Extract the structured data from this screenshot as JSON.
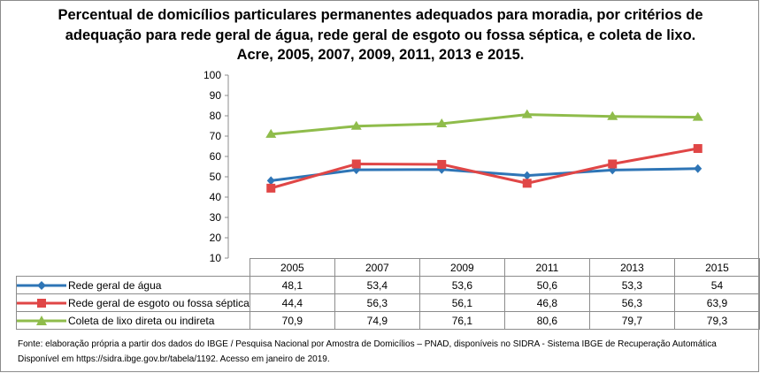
{
  "chart_data": {
    "type": "line",
    "title": "Percentual de domicílios particulares permanentes adequados para moradia, por critérios de adequação para rede geral de água, rede geral de esgoto ou fossa séptica, e coleta de lixo. Acre, 2005, 2007, 2009, 2011, 2013 e 2015.",
    "categories": [
      "2005",
      "2007",
      "2009",
      "2011",
      "2013",
      "2015"
    ],
    "ylim": [
      10,
      100
    ],
    "yticks": [
      "10",
      "20",
      "30",
      "40",
      "50",
      "60",
      "70",
      "80",
      "90",
      "100"
    ],
    "grid": false,
    "legend": "data-table",
    "series": [
      {
        "name": "Rede geral de água",
        "values": [
          48.1,
          53.4,
          53.6,
          50.6,
          53.3,
          54
        ],
        "labels": [
          "48,1",
          "53,4",
          "53,6",
          "50,6",
          "53,3",
          "54"
        ],
        "color": "#2e75b6",
        "marker": "diamond"
      },
      {
        "name": "Rede geral de esgoto ou fossa séptica",
        "values": [
          44.4,
          56.3,
          56.1,
          46.8,
          56.3,
          63.9
        ],
        "labels": [
          "44,4",
          "56,3",
          "56,1",
          "46,8",
          "56,3",
          "63,9"
        ],
        "color": "#e04646",
        "marker": "square"
      },
      {
        "name": "Coleta de lixo direta ou indireta",
        "values": [
          70.9,
          74.9,
          76.1,
          80.6,
          79.7,
          79.3
        ],
        "labels": [
          "70,9",
          "74,9",
          "76,1",
          "80,6",
          "79,7",
          "79,3"
        ],
        "color": "#8fbc4b",
        "marker": "triangle"
      }
    ]
  },
  "footer": {
    "line1": "Fonte: elaboração própria a partir dos dados do IBGE / Pesquisa Nacional por Amostra de Domicílios – PNAD, disponíveis no SIDRA - Sistema IBGE de Recuperação Automática",
    "line2": "Disponível em https://sidra.ibge.gov.br/tabela/1192. Acesso em janeiro de 2019."
  }
}
